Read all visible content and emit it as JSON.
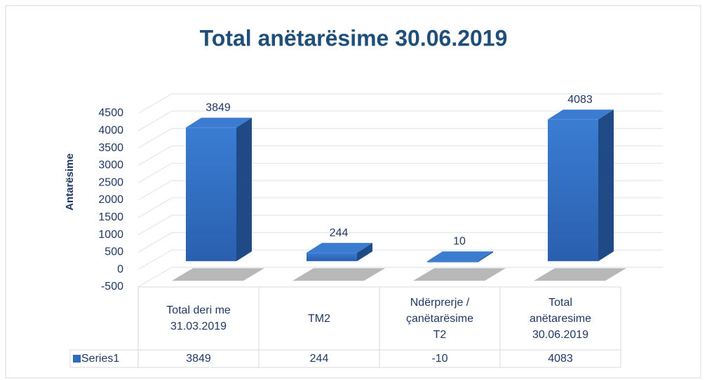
{
  "chart_data": {
    "type": "bar3d",
    "title": "Total anëtarësime 30.06.2019",
    "y_label": "Antarësime",
    "categories": [
      "Total deri me 31.03.2019",
      "TM2",
      "Ndërprerje / çanëtarësime T2",
      "Total anëtaresime 30.06.2019"
    ],
    "series": [
      {
        "name": "Series1",
        "color": "#2e6bc0",
        "values": [
          3849,
          244,
          -10,
          4083
        ],
        "value_labels": [
          "3849",
          "244",
          "10",
          "4083"
        ]
      }
    ],
    "ylim": [
      -500,
      4500
    ],
    "yticks": [
      -500,
      0,
      500,
      1000,
      1500,
      2000,
      2500,
      3000,
      3500,
      4000,
      4500
    ],
    "grid": true,
    "data_table": true
  }
}
